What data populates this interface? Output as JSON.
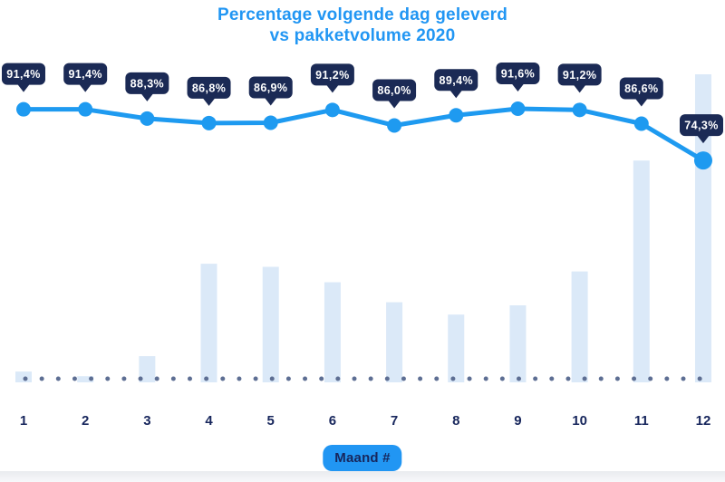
{
  "title": {
    "line1": "Percentage volgende dag geleverd",
    "line2": "vs pakketvolume 2020"
  },
  "chart_data": {
    "type": "line",
    "subtype": "line with bar series (combo)",
    "title": "Percentage volgende dag geleverd vs pakketvolume 2020",
    "categories": [
      "1",
      "2",
      "3",
      "4",
      "5",
      "6",
      "7",
      "8",
      "9",
      "10",
      "11",
      "12"
    ],
    "xlabel": "Maand #",
    "ylabel": "",
    "ylim": [
      70,
      95
    ],
    "grid": false,
    "legend_position": "none",
    "baseline_style": "dotted",
    "series": [
      {
        "name": "Percentage volgende dag geleverd",
        "type": "line",
        "unit": "%",
        "values": [
          91.4,
          91.4,
          88.3,
          86.8,
          86.9,
          91.2,
          86.0,
          89.4,
          91.6,
          91.2,
          86.6,
          74.3
        ],
        "labels": [
          "91,4%",
          "91,4%",
          "88,3%",
          "86,8%",
          "86,9%",
          "91,2%",
          "86,0%",
          "89,4%",
          "91,6%",
          "91,2%",
          "86,6%",
          "74,3%"
        ]
      },
      {
        "name": "Pakketvolume 2020",
        "type": "bar",
        "unit": "relative volume, max = 100 (axis unlabeled)",
        "values": [
          3.5,
          2,
          8.5,
          38.5,
          37.5,
          32.5,
          26,
          22,
          25,
          36,
          72,
          100
        ]
      }
    ]
  },
  "colors": {
    "title": "#2196f3",
    "line": "#1e9af0",
    "marker": "#1e9af0",
    "tooltip_bg": "#1b2a55",
    "tooltip_text": "#ffffff",
    "bar": "#dbe9f8",
    "dots": "#5d6e93",
    "tick_label": "#17265c",
    "badge_bg": "#2196f3",
    "badge_text": "#17265c",
    "background": "#ffffff"
  }
}
